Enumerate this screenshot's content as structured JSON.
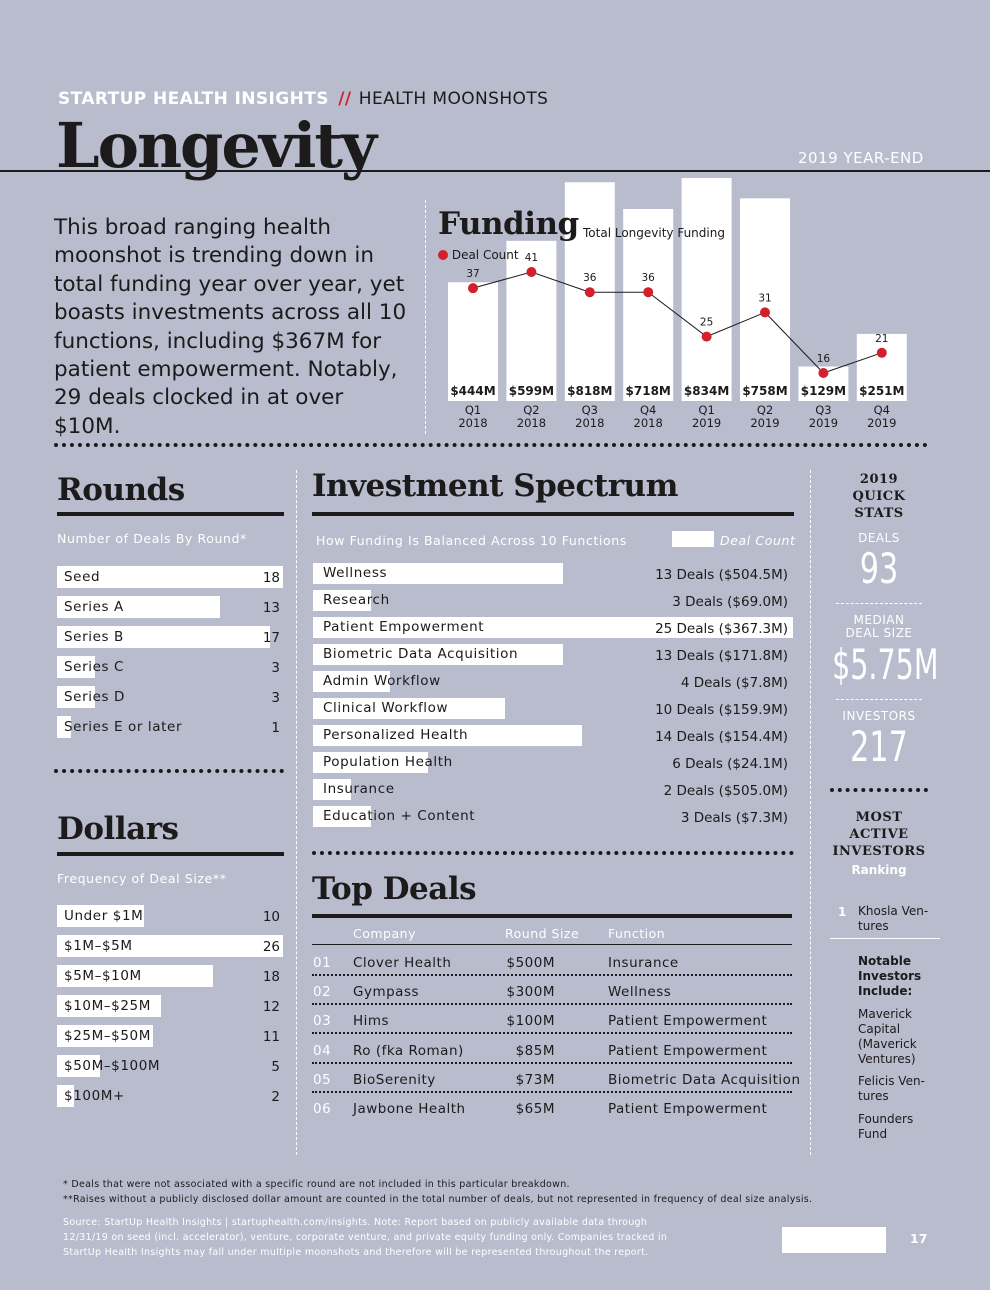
{
  "header": {
    "brand": "STARTUP HEALTH INSIGHTS",
    "separator": "//",
    "section": "HEALTH MOONSHOTS",
    "title": "Longevity",
    "period": "2019 YEAR-END"
  },
  "intro": "This broad ranging health moonshot is trending down in total funding year over year, yet boasts investments across all 10 functions, including $367M for patient empowerment. Notably, 29 deals clocked in at over $10M.",
  "funding": {
    "title": "Funding",
    "total_label": "Total Longevity Funding",
    "deal_label": "Deal Count"
  },
  "chart_data": {
    "type": "bar",
    "title": "Funding",
    "categories": [
      "Q1 2018",
      "Q2 2018",
      "Q3 2018",
      "Q4 2018",
      "Q1 2019",
      "Q2 2019",
      "Q3 2019",
      "Q4 2019"
    ],
    "quarters": [
      "Q1",
      "Q2",
      "Q3",
      "Q4",
      "Q1",
      "Q2",
      "Q3",
      "Q4"
    ],
    "years": [
      "2018",
      "2018",
      "2018",
      "2018",
      "2019",
      "2019",
      "2019",
      "2019"
    ],
    "series": [
      {
        "name": "Total Longevity Funding",
        "values": [
          444,
          599,
          818,
          718,
          834,
          758,
          129,
          251
        ],
        "labels": [
          "$444M",
          "$599M",
          "$818M",
          "$718M",
          "$834M",
          "$758M",
          "$129M",
          "$251M"
        ]
      },
      {
        "name": "Deal Count",
        "values": [
          37,
          41,
          36,
          36,
          25,
          31,
          16,
          21
        ]
      }
    ]
  },
  "rounds": {
    "title": "Rounds",
    "subtitle": "Number of Deals By Round*",
    "max": 18,
    "items": [
      {
        "label": "Seed",
        "value": 18
      },
      {
        "label": "Series A",
        "value": 13
      },
      {
        "label": "Series B",
        "value": 17
      },
      {
        "label": "Series C",
        "value": 3
      },
      {
        "label": "Series D",
        "value": 3
      },
      {
        "label": "Series E or later",
        "value": 1
      }
    ]
  },
  "dollars": {
    "title": "Dollars",
    "subtitle": "Frequency of Deal Size**",
    "max": 26,
    "items": [
      {
        "label": "Under $1M",
        "value": 10
      },
      {
        "label": "$1M–$5M",
        "value": 26
      },
      {
        "label": "$5M–$10M",
        "value": 18
      },
      {
        "label": "$10M–$25M",
        "value": 12
      },
      {
        "label": "$25M–$50M",
        "value": 11
      },
      {
        "label": "$50M–$100M",
        "value": 5
      },
      {
        "label": "$100M+",
        "value": 2
      }
    ]
  },
  "spectrum": {
    "title": "Investment Spectrum",
    "subtitle": "How Funding Is Balanced Across 10 Functions",
    "legend": "Deal Count",
    "max": 25,
    "items": [
      {
        "label": "Wellness",
        "deals": 13,
        "value": "13 Deals ($504.5M)"
      },
      {
        "label": "Research",
        "deals": 3,
        "value": "3 Deals ($69.0M)"
      },
      {
        "label": "Patient Empowerment",
        "deals": 25,
        "value": "25 Deals ($367.3M)"
      },
      {
        "label": "Biometric Data Acquisition",
        "deals": 13,
        "value": "13 Deals ($171.8M)"
      },
      {
        "label": "Admin Workflow",
        "deals": 4,
        "value": "4 Deals ($7.8M)"
      },
      {
        "label": "Clinical Workflow",
        "deals": 10,
        "value": "10 Deals ($159.9M)"
      },
      {
        "label": "Personalized Health",
        "deals": 14,
        "value": "14 Deals ($154.4M)"
      },
      {
        "label": "Population Health",
        "deals": 6,
        "value": "6 Deals ($24.1M)"
      },
      {
        "label": "Insurance",
        "deals": 2,
        "value": "2 Deals ($505.0M)"
      },
      {
        "label": "Education + Content",
        "deals": 3,
        "value": "3 Deals ($7.3M)"
      }
    ]
  },
  "top_deals": {
    "title": "Top Deals",
    "headers": [
      "Company",
      "Round Size",
      "Function"
    ],
    "rows": [
      {
        "n": "01",
        "company": "Clover Health",
        "size": "$500M",
        "function": "Insurance"
      },
      {
        "n": "02",
        "company": "Gympass",
        "size": "$300M",
        "function": "Wellness"
      },
      {
        "n": "03",
        "company": "Hims",
        "size": "$100M",
        "function": "Patient Empowerment"
      },
      {
        "n": "04",
        "company": "Ro (fka Roman)",
        "size": "$85M",
        "function": "Patient Empowerment"
      },
      {
        "n": "05",
        "company": "BioSerenity",
        "size": "$73M",
        "function": "Biometric Data Acquisition"
      },
      {
        "n": "06",
        "company": "Jawbone Health",
        "size": "$65M",
        "function": "Patient Empowerment"
      }
    ]
  },
  "quick_stats": {
    "title_line1": "2019",
    "title_line2": "QUICK",
    "title_line3": "STATS",
    "deals_label": "DEALS",
    "deals_value": "93",
    "median_label_1": "MEDIAN",
    "median_label_2": "DEAL SIZE",
    "median_value": "$5.75M",
    "investors_label": "INVESTORS",
    "investors_value": "217"
  },
  "active_investors": {
    "title_line1": "MOST",
    "title_line2": "ACTIVE",
    "title_line3": "INVESTORS",
    "ranking_label": "Ranking",
    "rank": "1",
    "top_line1": "Khosla Ven-",
    "top_line2": "tures",
    "notable_line1": "Notable",
    "notable_line2": "Investors",
    "notable_line3": "Include:",
    "notable": [
      [
        "Maverick",
        "Capital",
        "(Maverick",
        "Ventures)"
      ],
      [
        "Felicis Ven-",
        "tures"
      ],
      [
        "Founders",
        "Fund"
      ]
    ]
  },
  "footnotes": {
    "note1": "* Deals that were not associated with a specific round are not included in this particular breakdown.",
    "note2": "**Raises without a publicly disclosed dollar amount are counted in the total number of deals, but not represented in frequency of deal size analysis.",
    "source1": "Source: StartUp Health Insights | startuphealth.com/insights. Note: Report based on publicly available data through",
    "source2": "12/31/19 on seed (incl. accelerator), venture, corporate venture, and private equity funding only. Companies tracked in",
    "source3": "StartUp Health Insights may fall under multiple moonshots and therefore will be represented throughout the report."
  },
  "page_number": "17",
  "colors": {
    "background": "#b8bccd",
    "ink": "#1d1a1b",
    "accent_red": "#d4202c",
    "white": "#ffffff"
  }
}
